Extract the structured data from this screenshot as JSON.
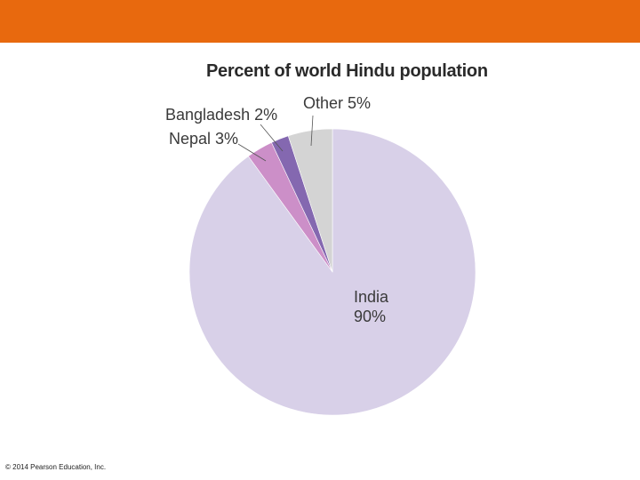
{
  "header": {
    "bar_color": "#e8690e"
  },
  "footer": {
    "copyright": "© 2014 Pearson Education, Inc."
  },
  "chart_data": {
    "type": "pie",
    "title": "Percent of world Hindu population",
    "slices": [
      {
        "name": "India",
        "value": 90,
        "label_lines": [
          "India",
          "90%"
        ],
        "color": "#d8d0e8"
      },
      {
        "name": "Nepal",
        "value": 3,
        "label_lines": [
          "Nepal 3%"
        ],
        "color": "#cc8fc8"
      },
      {
        "name": "Bangladesh",
        "value": 2,
        "label_lines": [
          "Bangladesh 2%"
        ],
        "color": "#8468b0"
      },
      {
        "name": "Other",
        "value": 5,
        "label_lines": [
          "Other 5%"
        ],
        "color": "#d4d4d4"
      }
    ],
    "start_angle_deg": 0,
    "direction": "clockwise-from-top"
  }
}
